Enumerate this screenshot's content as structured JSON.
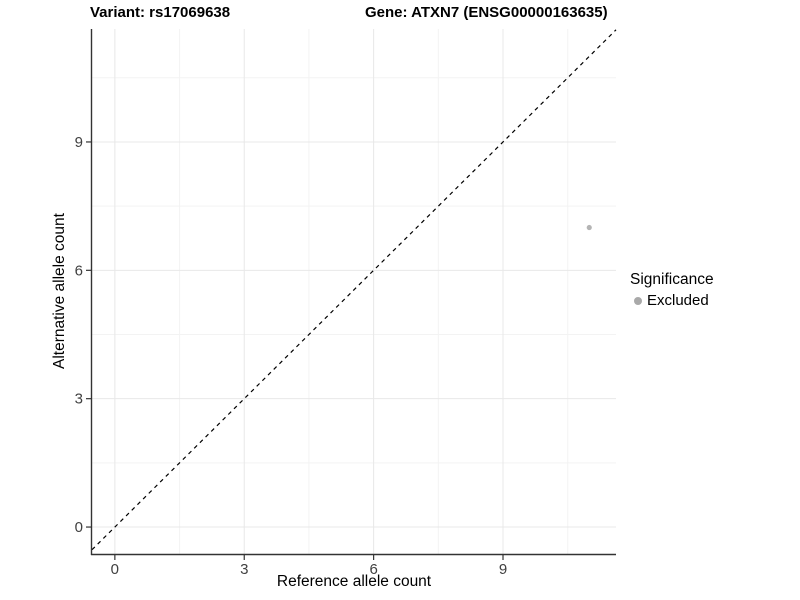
{
  "chart_data": {
    "type": "scatter",
    "title_left": "Variant: rs17069638",
    "title_right": "Gene: ATXN7 (ENSG00000163635)",
    "xlabel": "Reference allele count",
    "ylabel": "Alternative allele count",
    "xlim": [
      -0.53,
      11.62
    ],
    "ylim": [
      -0.63,
      11.64
    ],
    "x_ticks": [
      0,
      3,
      6,
      9
    ],
    "y_ticks": [
      0,
      3,
      6,
      9
    ],
    "x_minor_ticks": [
      1.5,
      4.5,
      7.5,
      10.5
    ],
    "y_minor_ticks": [
      1.5,
      4.5,
      7.5,
      10.5
    ],
    "grid": true,
    "legend_position": "right",
    "identity_line": {
      "slope": 1,
      "intercept": 0,
      "style": "dashed",
      "color": "#000000"
    },
    "series": [
      {
        "name": "Excluded",
        "color": "#b4b4b4",
        "point_radius": 2.6,
        "points": [
          [
            11,
            7
          ]
        ]
      }
    ],
    "legend": {
      "title": "Significance",
      "items": [
        {
          "label": "Excluded",
          "color": "#a9a9a9"
        }
      ]
    }
  },
  "colors": {
    "background": "#ffffff",
    "grid_major": "#e8e8e8",
    "grid_minor": "#f3f3f3",
    "axis_line": "#333333",
    "tick_mark": "#333333",
    "tick_label": "#404040",
    "title_text": "#000000"
  }
}
